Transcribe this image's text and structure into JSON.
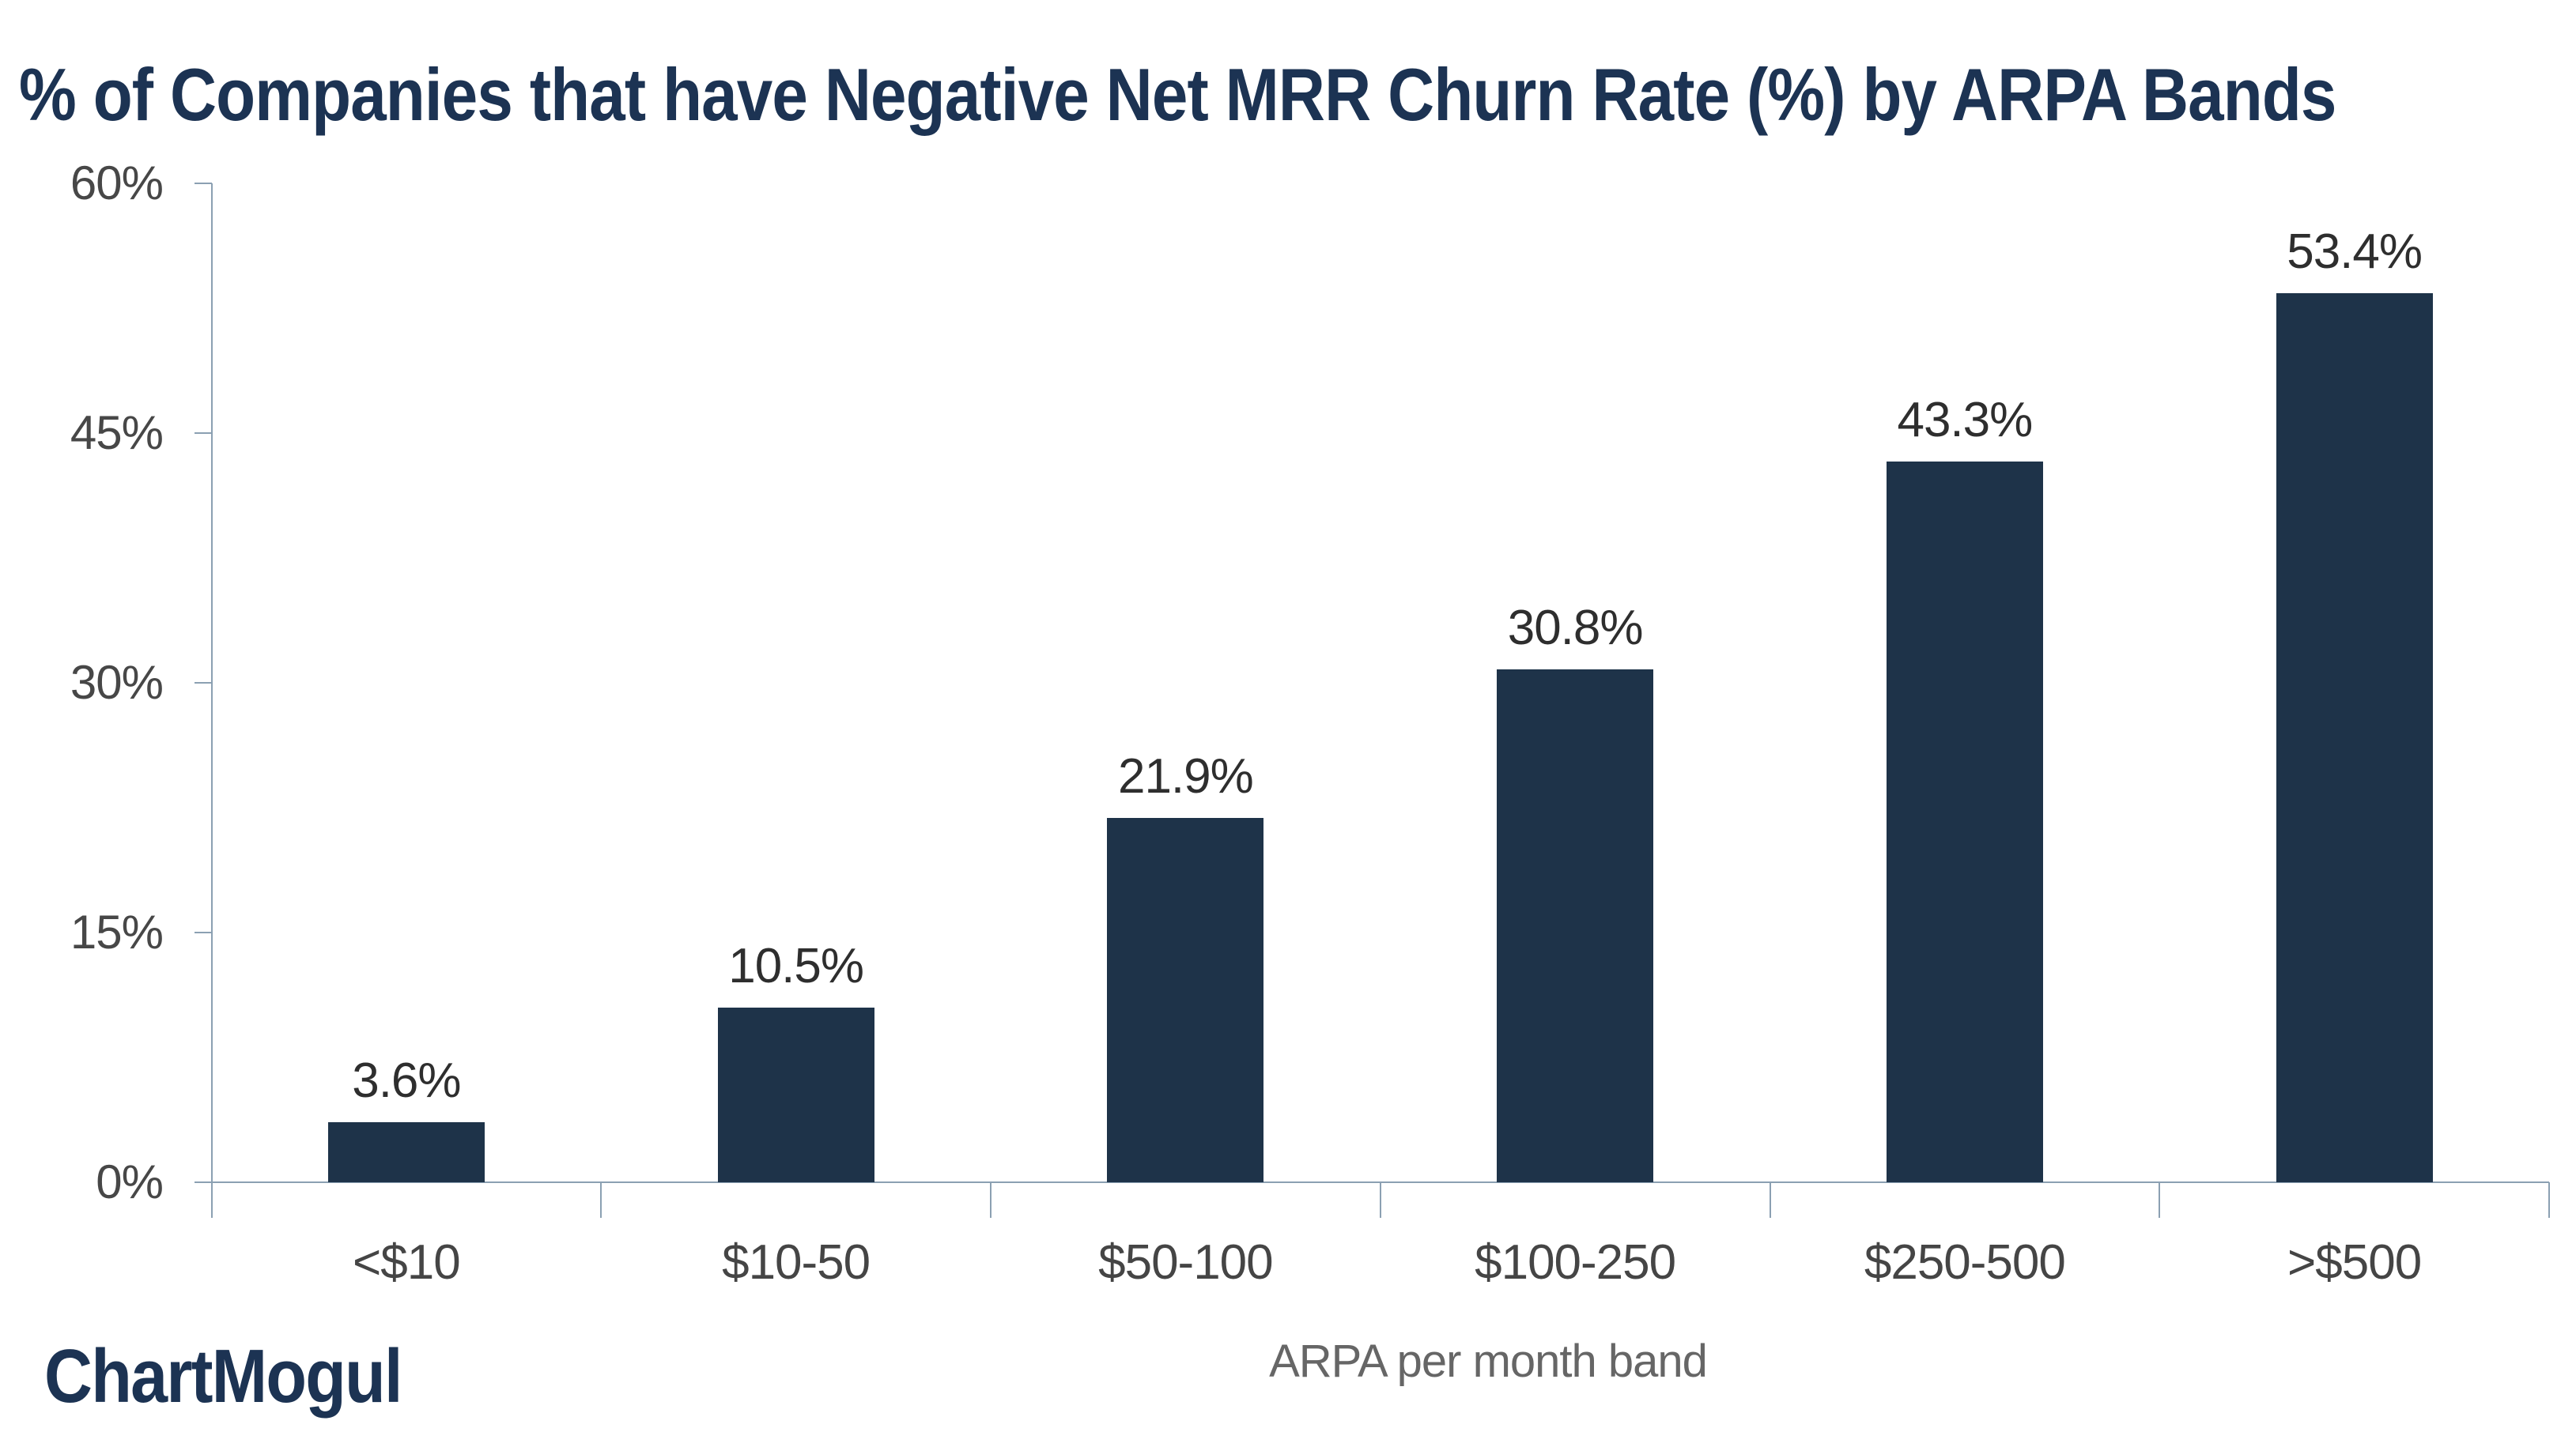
{
  "branding": {
    "logo_text": "ChartMogul"
  },
  "colors": {
    "background": "#ffffff",
    "bar": "#1e3349",
    "title": "#1c3353",
    "logo": "#1c3353",
    "axis_line": "#8ba0b2",
    "value_label": "#2e2e2e",
    "category_label": "#454545",
    "ytick_label": "#474747",
    "axis_title": "#666666"
  },
  "chart_data": {
    "type": "bar",
    "title": "% of Companies that have Negative Net MRR Churn Rate (%) by ARPA Bands",
    "categories": [
      "<$10",
      "$10-50",
      "$50-100",
      "$100-250",
      "$250-500",
      ">$500"
    ],
    "values": [
      3.6,
      10.5,
      21.9,
      30.8,
      43.3,
      53.4
    ],
    "value_labels": [
      "3.6%",
      "10.5%",
      "21.9%",
      "30.8%",
      "43.3%",
      "53.4%"
    ],
    "xlabel": "ARPA per month band",
    "ylabel": "",
    "ylim": [
      0,
      60
    ],
    "ytick_values": [
      0,
      15,
      30,
      45,
      60
    ],
    "ytick_labels": [
      "0%",
      "15%",
      "30%",
      "45%",
      "60%"
    ],
    "grid": false,
    "legend": "none",
    "bar_color": "#1e3349"
  }
}
